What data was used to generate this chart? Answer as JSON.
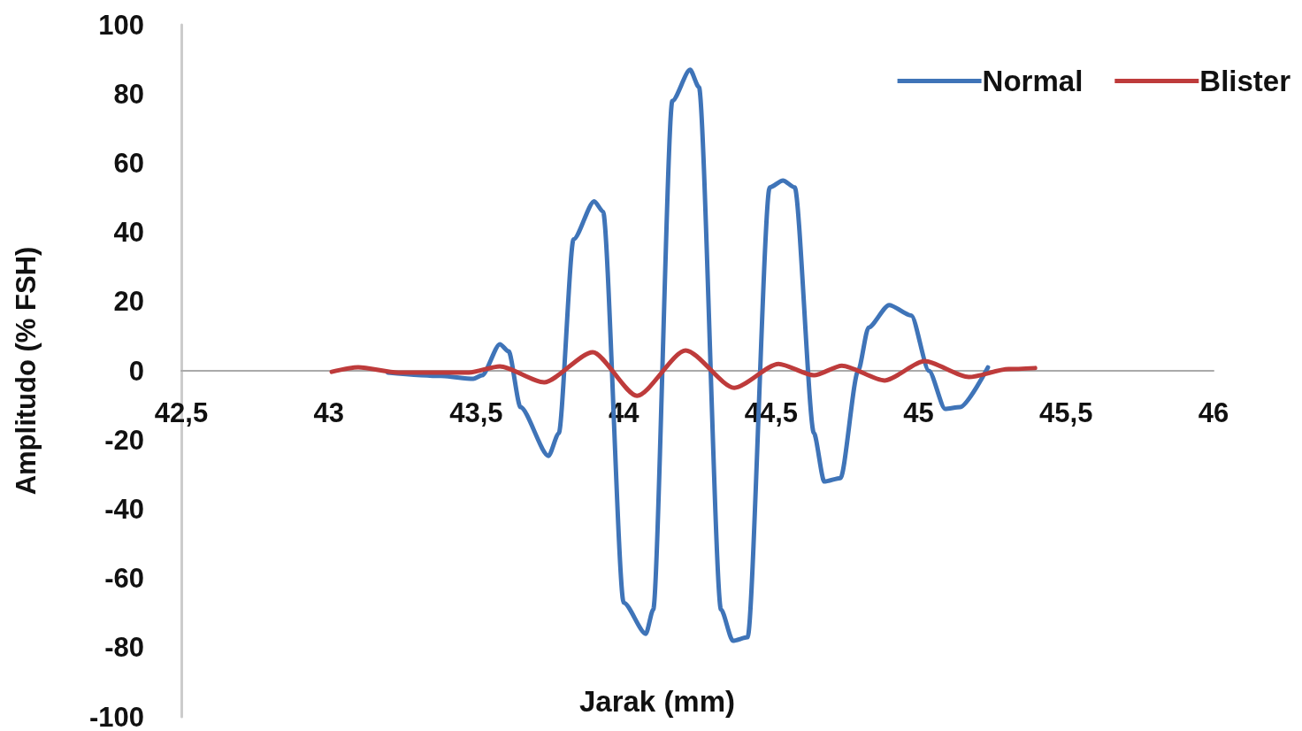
{
  "chart_data": {
    "type": "line",
    "xlabel": "Jarak (mm)",
    "ylabel": "Amplitudo (% FSH)",
    "xlim": [
      42.5,
      46
    ],
    "xticks": [
      {
        "value": 42.5,
        "label": "42,5"
      },
      43,
      {
        "value": 43.5,
        "label": "43,5"
      },
      44,
      {
        "value": 44.5,
        "label": "44,5"
      },
      45,
      {
        "value": 45.5,
        "label": "45,5"
      },
      46
    ],
    "ylim": [
      -100,
      100
    ],
    "yticks": [
      -100,
      -80,
      -60,
      -40,
      -20,
      0,
      20,
      40,
      60,
      80,
      100
    ],
    "grid": false,
    "legend": "top right",
    "marker": "none",
    "line_style": "solid",
    "series": [
      {
        "name": "Normal",
        "color": "#3f74b8",
        "x": [
          43.2,
          43.38,
          43.49,
          43.52,
          43.58,
          43.61,
          43.65,
          43.745,
          43.78,
          43.83,
          43.9,
          43.93,
          44.0,
          44.075,
          44.1,
          44.165,
          44.225,
          44.255,
          44.33,
          44.37,
          44.42,
          44.495,
          44.54,
          44.58,
          44.645,
          44.68,
          44.735,
          44.795,
          44.83,
          44.9,
          44.975,
          45.035,
          45.09,
          45.14,
          45.235
        ],
        "values": [
          -0.5,
          -1.5,
          -2.3,
          -1.3,
          7.7,
          5.6,
          -10.5,
          -24.6,
          -18,
          38,
          49,
          46,
          -67,
          -76,
          -69,
          78,
          87,
          82,
          -69,
          -78,
          -77,
          53,
          55,
          53,
          -18,
          -32,
          -31,
          0,
          12.5,
          19,
          16,
          0,
          -11,
          -10.5,
          1
        ]
      },
      {
        "name": "Blister",
        "color": "#be3b3b",
        "x": [
          43.01,
          43.1,
          43.235,
          43.475,
          43.58,
          43.73,
          43.895,
          44.045,
          44.21,
          44.375,
          44.525,
          44.645,
          44.74,
          44.885,
          45.02,
          45.17,
          45.305,
          45.395
        ],
        "values": [
          -0.3,
          1,
          -0.5,
          -0.5,
          1.3,
          -3.3,
          5.4,
          -7.2,
          5.9,
          -4.9,
          2,
          -1.3,
          1.5,
          -2.8,
          2.8,
          -1.8,
          0.5,
          0.8
        ]
      }
    ]
  }
}
